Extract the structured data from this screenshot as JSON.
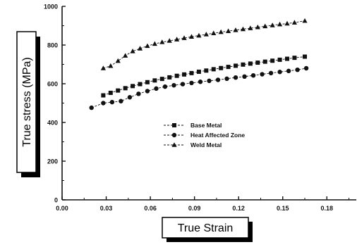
{
  "chart_data": {
    "type": "line",
    "xlabel": "True Strain",
    "ylabel": "True stress (MPa)",
    "xlim": [
      0.0,
      0.2
    ],
    "ylim": [
      0,
      1000
    ],
    "xticks": [
      "0.00",
      "0.03",
      "0.06",
      "0.09",
      "0.12",
      "0.15",
      "0.18"
    ],
    "yticks": [
      "0",
      "200",
      "400",
      "600",
      "800",
      "1000"
    ],
    "grid": false,
    "legend_position": "center-right",
    "series": [
      {
        "name": "Base Metal",
        "marker": "square",
        "x": [
          0.028,
          0.033,
          0.038,
          0.043,
          0.048,
          0.053,
          0.058,
          0.063,
          0.068,
          0.073,
          0.078,
          0.083,
          0.088,
          0.093,
          0.098,
          0.103,
          0.108,
          0.113,
          0.118,
          0.123,
          0.128,
          0.133,
          0.138,
          0.143,
          0.148,
          0.153,
          0.158,
          0.165
        ],
        "y": [
          540,
          553,
          565,
          577,
          588,
          598,
          608,
          617,
          625,
          633,
          641,
          648,
          655,
          662,
          668,
          675,
          681,
          687,
          693,
          699,
          704,
          709,
          714,
          719,
          724,
          729,
          734,
          740
        ]
      },
      {
        "name": "Heat Affected Zone",
        "marker": "circle",
        "x": [
          0.02,
          0.028,
          0.034,
          0.04,
          0.046,
          0.052,
          0.058,
          0.064,
          0.07,
          0.076,
          0.082,
          0.088,
          0.094,
          0.1,
          0.106,
          0.112,
          0.118,
          0.124,
          0.13,
          0.136,
          0.142,
          0.148,
          0.154,
          0.16,
          0.166
        ],
        "y": [
          476,
          500,
          505,
          510,
          530,
          548,
          562,
          575,
          585,
          592,
          598,
          604,
          610,
          615,
          620,
          626,
          632,
          637,
          643,
          649,
          655,
          661,
          666,
          672,
          680
        ]
      },
      {
        "name": "Weld Metal",
        "marker": "triangle",
        "x": [
          0.028,
          0.033,
          0.038,
          0.043,
          0.048,
          0.053,
          0.058,
          0.063,
          0.068,
          0.073,
          0.078,
          0.083,
          0.088,
          0.093,
          0.098,
          0.103,
          0.108,
          0.113,
          0.118,
          0.123,
          0.128,
          0.133,
          0.138,
          0.143,
          0.148,
          0.153,
          0.158,
          0.165
        ],
        "y": [
          680,
          692,
          718,
          745,
          768,
          782,
          795,
          806,
          815,
          822,
          829,
          836,
          843,
          849,
          855,
          861,
          867,
          872,
          877,
          882,
          887,
          892,
          897,
          902,
          907,
          911,
          916,
          925
        ]
      }
    ]
  },
  "colors": {
    "ink": "#111111",
    "axis": "#000000"
  }
}
